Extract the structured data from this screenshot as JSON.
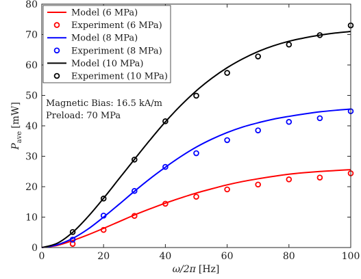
{
  "chart_data": {
    "type": "line",
    "xlabel_symbol": "ω/2π",
    "xlabel_unit": "[Hz]",
    "ylabel_symbol": "P",
    "ylabel_sub": "ave",
    "ylabel_unit": "[mW]",
    "xlim": [
      0,
      100
    ],
    "ylim": [
      0,
      80
    ],
    "x_ticks": [
      0,
      20,
      40,
      60,
      80,
      100
    ],
    "y_ticks": [
      0,
      10,
      20,
      30,
      40,
      50,
      60,
      70,
      80
    ],
    "grid": false,
    "legend_position": "top-left",
    "annotations": [
      "Magnetic Bias: 16.5 kA/m",
      "Preload: 70 MPa"
    ],
    "series": [
      {
        "name": "Model (6 MPa)",
        "kind": "line",
        "color": "#ff0000",
        "x": [
          0,
          5,
          10,
          15,
          20,
          25,
          30,
          35,
          40,
          45,
          50,
          55,
          60,
          65,
          70,
          75,
          80,
          85,
          90,
          95,
          100
        ],
        "y": [
          0,
          0.7,
          2.3,
          4.2,
          6.3,
          8.5,
          10.7,
          12.7,
          14.6,
          16.3,
          17.9,
          19.3,
          20.6,
          21.7,
          22.6,
          23.4,
          24.1,
          24.6,
          25.0,
          25.3,
          25.6
        ]
      },
      {
        "name": "Experiment (6 MPa)",
        "kind": "marker",
        "color": "#ff0000",
        "x": [
          10,
          20,
          30,
          40,
          50,
          60,
          70,
          80,
          90,
          100
        ],
        "y": [
          1.2,
          5.8,
          10.4,
          14.4,
          16.7,
          19.1,
          20.7,
          22.4,
          23.0,
          24.4
        ]
      },
      {
        "name": "Model (8 MPa)",
        "kind": "line",
        "color": "#0000ff",
        "x": [
          0,
          5,
          10,
          15,
          20,
          25,
          30,
          35,
          40,
          45,
          50,
          55,
          60,
          65,
          70,
          75,
          80,
          85,
          90,
          95,
          100
        ],
        "y": [
          0,
          0.9,
          3.0,
          6.1,
          10.0,
          14.2,
          18.5,
          22.6,
          26.4,
          29.9,
          33.0,
          35.6,
          37.8,
          39.6,
          41.0,
          42.2,
          43.1,
          43.9,
          44.6,
          45.1,
          45.5
        ]
      },
      {
        "name": "Experiment (8 MPa)",
        "kind": "marker",
        "color": "#0000ff",
        "x": [
          10,
          20,
          30,
          40,
          50,
          60,
          70,
          80,
          90,
          100
        ],
        "y": [
          2.6,
          10.5,
          18.6,
          26.5,
          31.0,
          35.3,
          38.5,
          41.3,
          42.5,
          44.8
        ]
      },
      {
        "name": "Model (10 MPa)",
        "kind": "line",
        "color": "#000000",
        "x": [
          0,
          5,
          10,
          15,
          20,
          25,
          30,
          35,
          40,
          45,
          50,
          55,
          60,
          65,
          70,
          75,
          80,
          85,
          90,
          95,
          100
        ],
        "y": [
          0,
          1.4,
          5.0,
          10.2,
          16.2,
          22.6,
          29.0,
          35.3,
          41.3,
          46.7,
          51.5,
          55.6,
          59.1,
          62.0,
          64.4,
          66.3,
          67.8,
          68.9,
          69.8,
          70.5,
          71.0
        ]
      },
      {
        "name": "Experiment (10 MPa)",
        "kind": "marker",
        "color": "#000000",
        "x": [
          10,
          20,
          30,
          40,
          50,
          60,
          70,
          80,
          90,
          100
        ],
        "y": [
          5.1,
          16.1,
          28.9,
          41.5,
          49.9,
          57.4,
          62.8,
          66.7,
          69.8,
          73.0
        ]
      }
    ]
  }
}
